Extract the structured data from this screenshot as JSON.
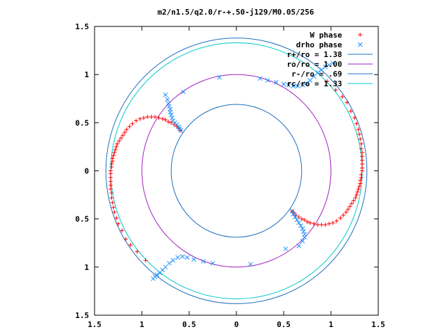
{
  "chart_data": {
    "type": "scatter",
    "title": "m2/n1.5/q2.0/r-+.50-j129/M0.05/256",
    "xlim": [
      -1.5,
      1.5
    ],
    "ylim": [
      -1.5,
      1.5
    ],
    "x_ticks": [
      -1.5,
      -1,
      -0.5,
      0,
      0.5,
      1,
      1.5
    ],
    "x_tick_labels": [
      "1.5",
      "1",
      "0.5",
      "0",
      "0.5",
      "1",
      "1.5"
    ],
    "y_ticks": [
      1.5,
      1,
      0.5,
      0,
      -0.5,
      -1,
      -1.5
    ],
    "y_tick_labels": [
      "1.5",
      "1",
      "0.5",
      "0",
      "0.5",
      "1",
      "1.5"
    ],
    "grid": false,
    "legend_position": "top-right",
    "series": [
      {
        "name": "W phase",
        "marker": "plus",
        "color": "#ff0000",
        "points": [
          [
            -0.96,
            -0.93
          ],
          [
            -1.05,
            -0.84
          ],
          [
            -1.12,
            -0.77
          ],
          [
            -1.17,
            -0.71
          ],
          [
            -1.21,
            -0.62
          ],
          [
            -1.25,
            -0.55
          ],
          [
            -1.27,
            -0.49
          ],
          [
            -1.29,
            -0.43
          ],
          [
            -1.3,
            -0.38
          ],
          [
            -1.31,
            -0.33
          ],
          [
            -1.32,
            -0.28
          ],
          [
            -1.32,
            -0.23
          ],
          [
            -1.33,
            -0.19
          ],
          [
            -1.33,
            -0.15
          ],
          [
            -1.33,
            -0.11
          ],
          [
            -1.33,
            -0.07
          ],
          [
            -1.33,
            -0.03
          ],
          [
            -1.33,
            0.0
          ],
          [
            -1.32,
            0.04
          ],
          [
            -1.32,
            0.07
          ],
          [
            -1.31,
            0.1
          ],
          [
            -1.31,
            0.13
          ],
          [
            -1.3,
            0.16
          ],
          [
            -1.29,
            0.19
          ],
          [
            -1.28,
            0.22
          ],
          [
            -1.27,
            0.25
          ],
          [
            -1.26,
            0.28
          ],
          [
            -1.24,
            0.31
          ],
          [
            -1.22,
            0.34
          ],
          [
            -1.2,
            0.37
          ],
          [
            -1.18,
            0.4
          ],
          [
            -1.16,
            0.43
          ],
          [
            -1.13,
            0.46
          ],
          [
            -1.1,
            0.49
          ],
          [
            -1.06,
            0.52
          ],
          [
            -1.02,
            0.54
          ],
          [
            -0.98,
            0.55
          ],
          [
            -0.94,
            0.56
          ],
          [
            -0.9,
            0.56
          ],
          [
            -0.86,
            0.56
          ],
          [
            -0.82,
            0.55
          ],
          [
            -0.78,
            0.54
          ],
          [
            -0.75,
            0.53
          ],
          [
            -0.72,
            0.51
          ],
          [
            -0.69,
            0.5
          ],
          [
            -0.66,
            0.48
          ],
          [
            -0.63,
            0.46
          ],
          [
            -0.61,
            0.44
          ],
          [
            -0.59,
            0.42
          ],
          [
            0.96,
            0.93
          ],
          [
            1.05,
            0.84
          ],
          [
            1.12,
            0.77
          ],
          [
            1.17,
            0.71
          ],
          [
            1.21,
            0.62
          ],
          [
            1.25,
            0.55
          ],
          [
            1.27,
            0.49
          ],
          [
            1.29,
            0.43
          ],
          [
            1.3,
            0.38
          ],
          [
            1.31,
            0.33
          ],
          [
            1.32,
            0.28
          ],
          [
            1.32,
            0.23
          ],
          [
            1.33,
            0.19
          ],
          [
            1.33,
            0.15
          ],
          [
            1.33,
            0.11
          ],
          [
            1.33,
            0.07
          ],
          [
            1.33,
            0.03
          ],
          [
            1.33,
            0.0
          ],
          [
            1.32,
            -0.04
          ],
          [
            1.32,
            -0.07
          ],
          [
            1.31,
            -0.1
          ],
          [
            1.31,
            -0.13
          ],
          [
            1.3,
            -0.16
          ],
          [
            1.29,
            -0.19
          ],
          [
            1.28,
            -0.22
          ],
          [
            1.27,
            -0.25
          ],
          [
            1.26,
            -0.28
          ],
          [
            1.24,
            -0.31
          ],
          [
            1.22,
            -0.34
          ],
          [
            1.2,
            -0.37
          ],
          [
            1.18,
            -0.4
          ],
          [
            1.16,
            -0.43
          ],
          [
            1.13,
            -0.46
          ],
          [
            1.1,
            -0.49
          ],
          [
            1.06,
            -0.52
          ],
          [
            1.02,
            -0.54
          ],
          [
            0.98,
            -0.55
          ],
          [
            0.94,
            -0.56
          ],
          [
            0.9,
            -0.56
          ],
          [
            0.86,
            -0.56
          ],
          [
            0.82,
            -0.55
          ],
          [
            0.78,
            -0.54
          ],
          [
            0.75,
            -0.53
          ],
          [
            0.72,
            -0.51
          ],
          [
            0.69,
            -0.5
          ],
          [
            0.66,
            -0.48
          ],
          [
            0.63,
            -0.46
          ],
          [
            0.61,
            -0.44
          ],
          [
            0.59,
            -0.42
          ]
        ]
      },
      {
        "name": "drho phase",
        "marker": "cross",
        "color": "#1e90ff",
        "points": [
          [
            -0.59,
            0.42
          ],
          [
            -0.6,
            0.44
          ],
          [
            -0.61,
            0.46
          ],
          [
            -0.63,
            0.48
          ],
          [
            -0.65,
            0.5
          ],
          [
            -0.67,
            0.52
          ],
          [
            -0.68,
            0.55
          ],
          [
            -0.69,
            0.58
          ],
          [
            -0.7,
            0.61
          ],
          [
            -0.7,
            0.64
          ],
          [
            -0.71,
            0.67
          ],
          [
            -0.72,
            0.7
          ],
          [
            -0.73,
            0.74
          ],
          [
            -0.75,
            0.79
          ],
          [
            -0.56,
            0.82
          ],
          [
            -0.18,
            0.97
          ],
          [
            0.25,
            0.96
          ],
          [
            0.33,
            0.94
          ],
          [
            0.42,
            0.92
          ],
          [
            0.5,
            0.9
          ],
          [
            0.55,
            0.89
          ],
          [
            0.6,
            0.88
          ],
          [
            0.65,
            0.88
          ],
          [
            0.7,
            0.89
          ],
          [
            0.74,
            0.91
          ],
          [
            0.78,
            0.94
          ],
          [
            0.82,
            0.98
          ],
          [
            0.86,
            1.02
          ],
          [
            0.9,
            1.05
          ],
          [
            0.94,
            1.08
          ],
          [
            0.98,
            1.1
          ],
          [
            1.02,
            1.12
          ],
          [
            0.59,
            -0.42
          ],
          [
            0.6,
            -0.45
          ],
          [
            0.62,
            -0.48
          ],
          [
            0.64,
            -0.51
          ],
          [
            0.66,
            -0.54
          ],
          [
            0.68,
            -0.57
          ],
          [
            0.7,
            -0.6
          ],
          [
            0.71,
            -0.63
          ],
          [
            0.72,
            -0.66
          ],
          [
            0.72,
            -0.69
          ],
          [
            0.7,
            -0.73
          ],
          [
            0.66,
            -0.78
          ],
          [
            0.52,
            -0.81
          ],
          [
            0.15,
            -0.97
          ],
          [
            -0.25,
            -0.96
          ],
          [
            -0.35,
            -0.94
          ],
          [
            -0.45,
            -0.92
          ],
          [
            -0.52,
            -0.9
          ],
          [
            -0.57,
            -0.89
          ],
          [
            -0.62,
            -0.9
          ],
          [
            -0.67,
            -0.93
          ],
          [
            -0.71,
            -0.96
          ],
          [
            -0.75,
            -1.0
          ],
          [
            -0.78,
            -1.03
          ],
          [
            -0.81,
            -1.06
          ],
          [
            -0.84,
            -1.08
          ],
          [
            -0.86,
            -1.1
          ],
          [
            -0.88,
            -1.12
          ]
        ]
      }
    ],
    "circles": [
      {
        "name": "r+/ro = 1.38",
        "radius": 1.38,
        "color": "#1f6fbf"
      },
      {
        "name": "ro/ro = 1.00",
        "radius": 1.0,
        "color": "#a020c0"
      },
      {
        "name": "r-/ro = .69",
        "radius": 0.69,
        "color": "#1f6fbf"
      },
      {
        "name": "rc/ro = 1.33",
        "radius": 1.33,
        "color": "#00c8c8"
      }
    ],
    "legend": [
      {
        "label": "W phase",
        "marker": "plus",
        "color": "#ff0000"
      },
      {
        "label": "drho phase",
        "marker": "cross",
        "color": "#1e90ff"
      },
      {
        "label": "r+/ro = 1.38",
        "marker": "line",
        "color": "#1f6fbf"
      },
      {
        "label": "ro/ro = 1.00",
        "marker": "line",
        "color": "#a020c0"
      },
      {
        "label": "r-/ro = .69",
        "marker": "line",
        "color": "#1f6fbf"
      },
      {
        "label": "rc/ro = 1.33",
        "marker": "line",
        "color": "#00c8c8"
      }
    ]
  }
}
